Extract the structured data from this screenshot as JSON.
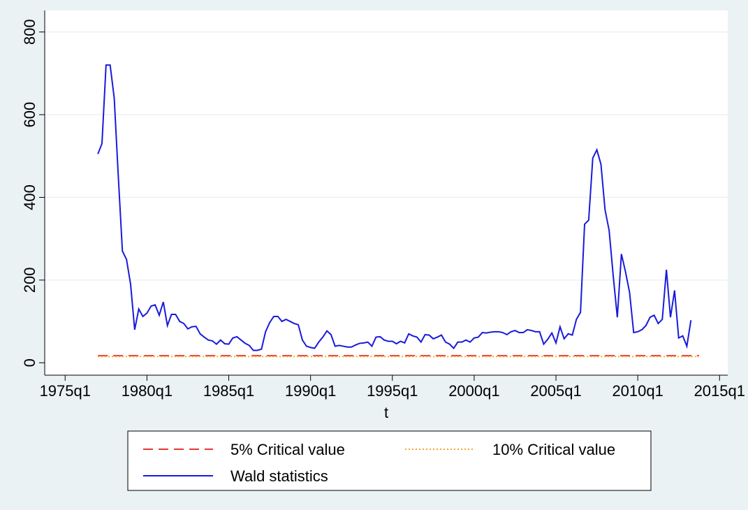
{
  "chart_data": {
    "type": "line",
    "x_label": "t",
    "xlim": [
      "1973q4",
      "2015q3"
    ],
    "xticks": [
      "1975q1",
      "1980q1",
      "1985q1",
      "1990q1",
      "1995q1",
      "2000q1",
      "2005q1",
      "2010q1",
      "2015q1"
    ],
    "ylim": [
      -30,
      852
    ],
    "yticks": [
      0,
      200,
      400,
      600,
      800
    ],
    "grid": true,
    "legend": "bottom",
    "series": [
      {
        "name": "5% Critical value",
        "color": "#e8372f",
        "dash": "dashed",
        "x": [
          "1977q1",
          "2013q4"
        ],
        "values": [
          17,
          17
        ]
      },
      {
        "name": "10% Critical value",
        "color": "#f5a623",
        "dash": "dotted",
        "x": [
          "1977q1",
          "2013q4"
        ],
        "values": [
          15,
          15
        ]
      },
      {
        "name": "Wald statistics",
        "color": "#1a1adb",
        "dash": "solid",
        "x": [
          "1977q1",
          "1977q2",
          "1977q3",
          "1977q4",
          "1978q1",
          "1978q2",
          "1978q3",
          "1978q4",
          "1979q1",
          "1979q2",
          "1979q3",
          "1979q4",
          "1980q1",
          "1980q2",
          "1980q3",
          "1980q4",
          "1981q1",
          "1981q2",
          "1981q3",
          "1981q4",
          "1982q1",
          "1982q2",
          "1982q3",
          "1982q4",
          "1983q1",
          "1983q2",
          "1983q3",
          "1983q4",
          "1984q1",
          "1984q2",
          "1984q3",
          "1984q4",
          "1985q1",
          "1985q2",
          "1985q3",
          "1985q4",
          "1986q1",
          "1986q2",
          "1986q3",
          "1986q4",
          "1987q1",
          "1987q2",
          "1987q3",
          "1987q4",
          "1988q1",
          "1988q2",
          "1988q3",
          "1988q4",
          "1989q1",
          "1989q2",
          "1989q3",
          "1989q4",
          "1990q1",
          "1990q2",
          "1990q3",
          "1990q4",
          "1991q1",
          "1991q2",
          "1991q3",
          "1991q4",
          "1992q1",
          "1992q2",
          "1992q3",
          "1992q4",
          "1993q1",
          "1993q2",
          "1993q3",
          "1993q4",
          "1994q1",
          "1994q2",
          "1994q3",
          "1994q4",
          "1995q1",
          "1995q2",
          "1995q3",
          "1995q4",
          "1996q1",
          "1996q2",
          "1996q3",
          "1996q4",
          "1997q1",
          "1997q2",
          "1997q3",
          "1997q4",
          "1998q1",
          "1998q2",
          "1998q3",
          "1998q4",
          "1999q1",
          "1999q2",
          "1999q3",
          "1999q4",
          "2000q1",
          "2000q2",
          "2000q3",
          "2000q4",
          "2001q1",
          "2001q2",
          "2001q3",
          "2001q4",
          "2002q1",
          "2002q2",
          "2002q3",
          "2002q4",
          "2003q1",
          "2003q2",
          "2003q3",
          "2003q4",
          "2004q1",
          "2004q2",
          "2004q3",
          "2004q4",
          "2005q1",
          "2005q2",
          "2005q3",
          "2005q4",
          "2006q1",
          "2006q2",
          "2006q3",
          "2006q4",
          "2007q1",
          "2007q2",
          "2007q3",
          "2007q4",
          "2008q1",
          "2008q2",
          "2008q3",
          "2008q4",
          "2009q1",
          "2009q2",
          "2009q3",
          "2009q4",
          "2010q1",
          "2010q2",
          "2010q3",
          "2010q4",
          "2011q1",
          "2011q2",
          "2011q3",
          "2011q4",
          "2012q1",
          "2012q2",
          "2012q3",
          "2012q4",
          "2013q1",
          "2013q2"
        ],
        "values": [
          505,
          530,
          720,
          720,
          640,
          450,
          270,
          250,
          190,
          80,
          130,
          112,
          120,
          137,
          140,
          115,
          147,
          90,
          117,
          117,
          100,
          95,
          82,
          87,
          88,
          70,
          62,
          55,
          53,
          45,
          55,
          46,
          45,
          60,
          63,
          55,
          47,
          42,
          30,
          30,
          33,
          75,
          97,
          112,
          112,
          100,
          105,
          100,
          95,
          92,
          55,
          40,
          37,
          35,
          50,
          62,
          77,
          68,
          40,
          42,
          40,
          38,
          38,
          43,
          47,
          48,
          50,
          40,
          62,
          63,
          55,
          52,
          52,
          46,
          52,
          48,
          70,
          65,
          62,
          50,
          68,
          67,
          58,
          62,
          67,
          50,
          45,
          35,
          50,
          50,
          55,
          50,
          60,
          62,
          73,
          72,
          74,
          75,
          75,
          73,
          68,
          75,
          78,
          73,
          73,
          80,
          78,
          75,
          75,
          45,
          57,
          72,
          48,
          87,
          58,
          70,
          67,
          105,
          122,
          335,
          345,
          495,
          515,
          480,
          370,
          320,
          210,
          110,
          263,
          220,
          170,
          73,
          75,
          80,
          90,
          110,
          115,
          95,
          105,
          225,
          110,
          175,
          60,
          65,
          40,
          103
        ]
      }
    ]
  }
}
